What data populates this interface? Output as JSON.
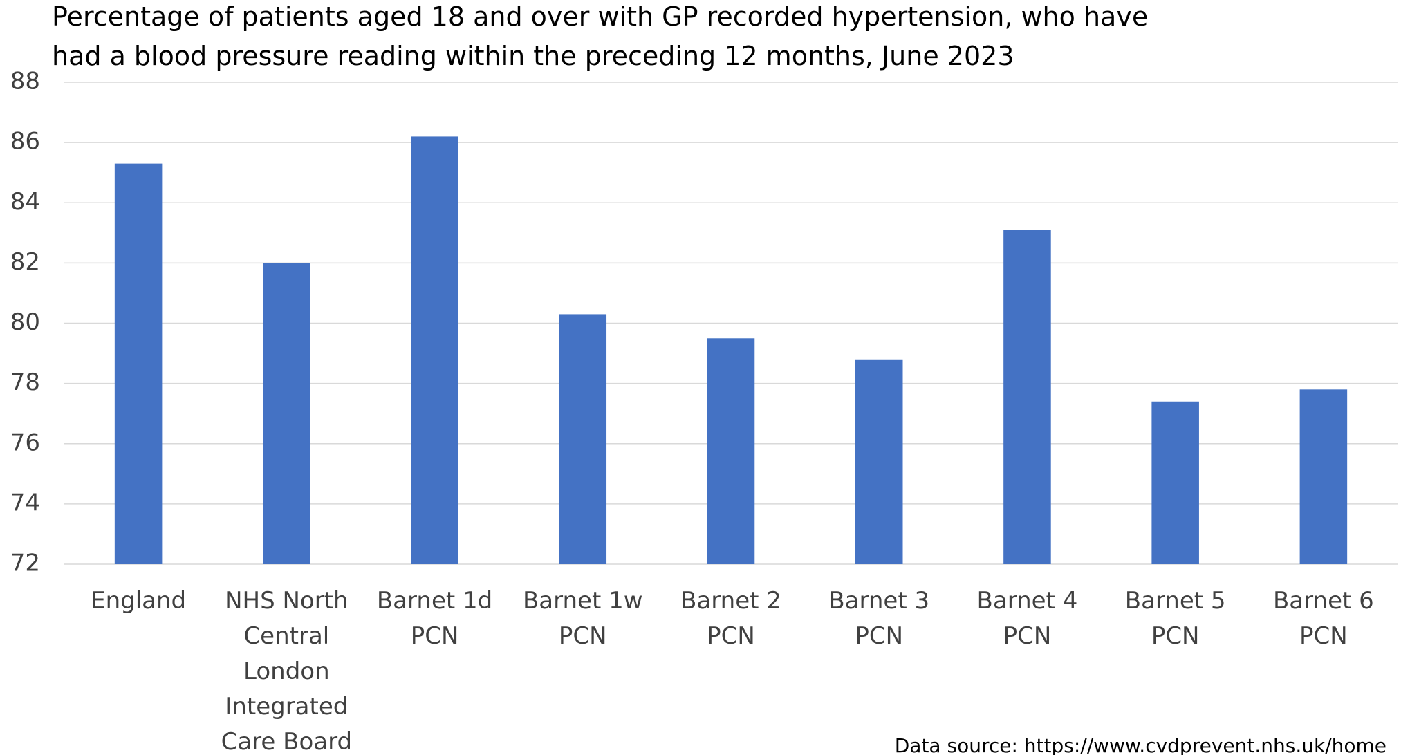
{
  "chart_data": {
    "type": "bar",
    "title": "Percentage of patients aged 18 and over with GP recorded hypertension, who have had a blood pressure reading within the preceding 12 months, June 2023",
    "categories": [
      "England",
      "NHS North Central London Integrated Care Board",
      "Barnet 1d PCN",
      "Barnet 1w PCN",
      "Barnet 2 PCN",
      "Barnet 3 PCN",
      "Barnet 4 PCN",
      "Barnet 5 PCN",
      "Barnet 6 PCN"
    ],
    "values": [
      85.3,
      82.0,
      86.2,
      80.3,
      79.5,
      78.8,
      83.1,
      77.4,
      77.8
    ],
    "color": "#4472c4",
    "ylim": [
      72,
      88
    ],
    "yticks": [
      72,
      74,
      76,
      78,
      80,
      82,
      84,
      86,
      88
    ],
    "grid": true,
    "annotation": "Data source: https://www.cvdprevent.nhs.uk/home"
  }
}
